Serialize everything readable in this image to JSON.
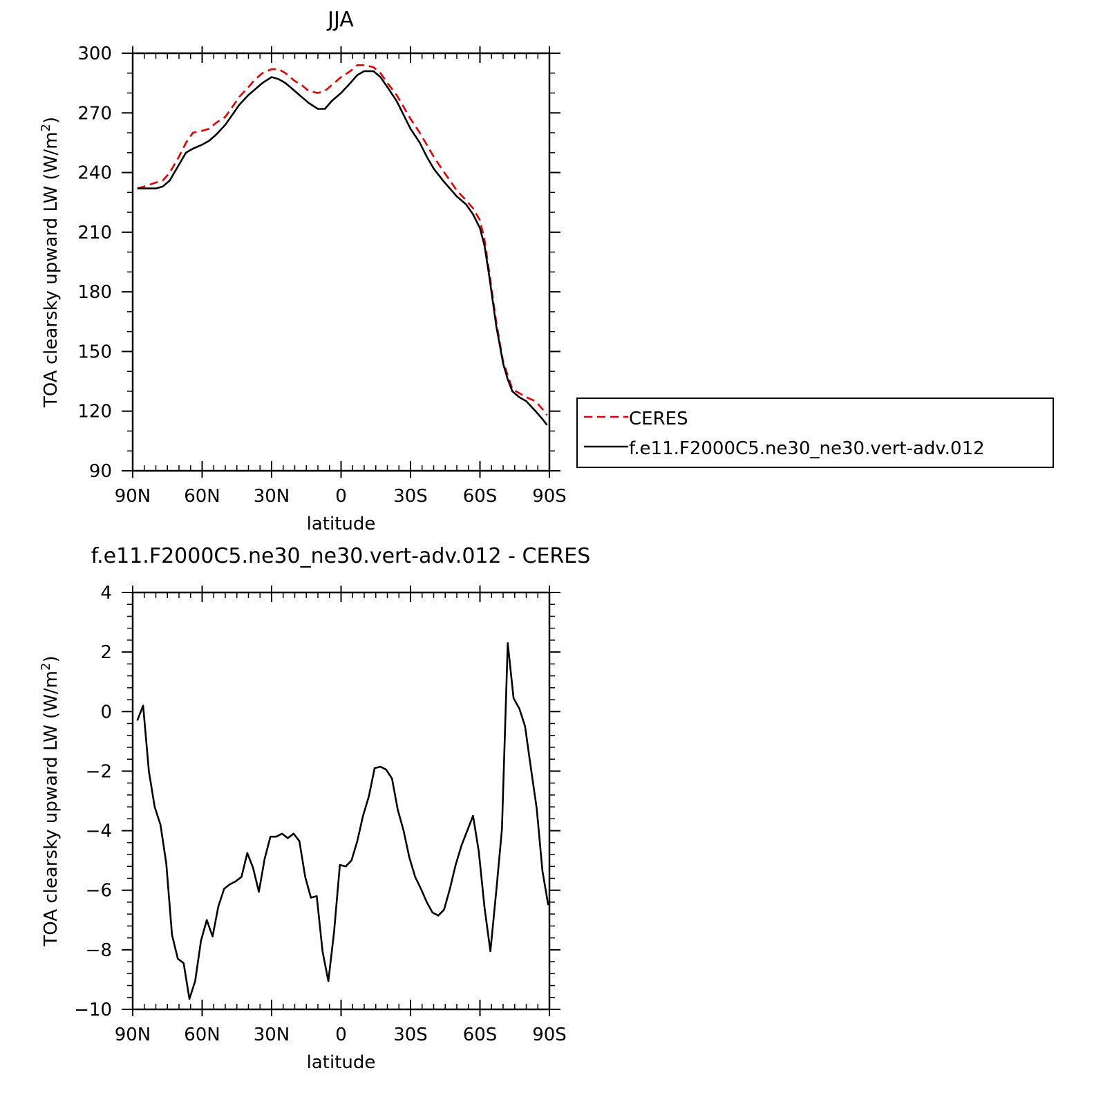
{
  "chart_data": [
    {
      "type": "line",
      "title": "JJA",
      "xlabel": "latitude",
      "ylabel": "TOA clearsky upward LW (W/m²)",
      "ylabel_parts": {
        "main": "TOA clearsky upward LW (W/m",
        "sup": "2",
        "close": ")"
      },
      "xlim": [
        90,
        -90
      ],
      "ylim": [
        90,
        300
      ],
      "xticks": [
        90,
        60,
        30,
        0,
        -30,
        -60,
        -90
      ],
      "xtick_labels": [
        "90N",
        "60N",
        "30N",
        "0",
        "30S",
        "60S",
        "90S"
      ],
      "yticks": [
        90,
        120,
        150,
        180,
        210,
        240,
        270,
        300
      ],
      "ytick_labels": [
        "90",
        "120",
        "150",
        "180",
        "210",
        "240",
        "270",
        "300"
      ],
      "legend_position": "right",
      "series": [
        {
          "name": "CERES",
          "color": "#e00000",
          "dash": true,
          "x": [
            88,
            85,
            80,
            77,
            74,
            70,
            67,
            64,
            60,
            57,
            54,
            50,
            47,
            44,
            40,
            37,
            34,
            30,
            27,
            24,
            20,
            17,
            14,
            10,
            7,
            4,
            0,
            -4,
            -7,
            -10,
            -14,
            -17,
            -20,
            -24,
            -27,
            -30,
            -34,
            -37,
            -40,
            -44,
            -47,
            -50,
            -54,
            -57,
            -60,
            -62,
            -64,
            -67,
            -70,
            -72,
            -74,
            -77,
            -80,
            -84,
            -87,
            -89
          ],
          "y": [
            232,
            233,
            235,
            236,
            240,
            248,
            255,
            260,
            261,
            262,
            265,
            268,
            273,
            278,
            283,
            287,
            290,
            292,
            292,
            290,
            286,
            284,
            281,
            280,
            281,
            284,
            288,
            291,
            294,
            294,
            293,
            290,
            285,
            279,
            273,
            267,
            260,
            254,
            248,
            241,
            236,
            231,
            226,
            222,
            216,
            206,
            190,
            165,
            145,
            138,
            131,
            129,
            127,
            125,
            121,
            118
          ]
        },
        {
          "name": "f.e11.F2000C5.ne30_ne30.vert-adv.012",
          "color": "#000000",
          "dash": false,
          "x": [
            88,
            85,
            80,
            77,
            74,
            70,
            67,
            64,
            60,
            57,
            54,
            50,
            47,
            44,
            40,
            37,
            34,
            30,
            27,
            24,
            20,
            17,
            14,
            10,
            7,
            4,
            0,
            -4,
            -7,
            -10,
            -14,
            -17,
            -20,
            -24,
            -27,
            -30,
            -34,
            -37,
            -40,
            -44,
            -47,
            -50,
            -54,
            -57,
            -60,
            -62,
            -64,
            -67,
            -70,
            -72,
            -74,
            -77,
            -80,
            -84,
            -87,
            -89
          ],
          "y": [
            232,
            232,
            232,
            233,
            236,
            244,
            250,
            252,
            254,
            256,
            259,
            264,
            269,
            274,
            279,
            282,
            285,
            288,
            287,
            285,
            281,
            278,
            275,
            272,
            272,
            276,
            280,
            285,
            289,
            291,
            291,
            288,
            283,
            276,
            269,
            262,
            255,
            248,
            242,
            236,
            232,
            228,
            224,
            219,
            212,
            203,
            188,
            163,
            144,
            136,
            130,
            127,
            125,
            120,
            116,
            113
          ]
        }
      ]
    },
    {
      "type": "line",
      "title": "f.e11.F2000C5.ne30_ne30.vert-adv.012 - CERES",
      "xlabel": "latitude",
      "ylabel": "TOA clearsky upward LW (W/m²)",
      "ylabel_parts": {
        "main": "TOA clearsky upward LW (W/m",
        "sup": "2",
        "close": ")"
      },
      "xlim": [
        90,
        -90
      ],
      "ylim": [
        -10,
        4
      ],
      "xticks": [
        90,
        60,
        30,
        0,
        -30,
        -60,
        -90
      ],
      "xtick_labels": [
        "90N",
        "60N",
        "30N",
        "0",
        "30S",
        "60S",
        "90S"
      ],
      "yticks": [
        -10,
        -8,
        -6,
        -4,
        -2,
        0,
        2,
        4
      ],
      "ytick_labels": [
        "−10",
        "−8",
        "−6",
        "−4",
        "−2",
        "0",
        "2",
        "4"
      ],
      "series": [
        {
          "color": "#000000",
          "dash": false,
          "x": [
            88,
            85.5,
            83,
            80.5,
            78,
            75.5,
            73,
            70.5,
            68,
            65.5,
            63,
            60.5,
            58,
            55.5,
            53,
            50.5,
            48,
            45.5,
            43,
            40.5,
            38,
            35.5,
            33,
            30.5,
            28,
            25.5,
            23,
            20.5,
            18,
            15.5,
            13,
            10.5,
            8,
            5.5,
            3,
            0.5,
            -2,
            -4.5,
            -7,
            -9.5,
            -12,
            -14.5,
            -17,
            -19.5,
            -22,
            -24.5,
            -27,
            -29.5,
            -32,
            -34.5,
            -37,
            -39.5,
            -42,
            -44.5,
            -47,
            -49.5,
            -52,
            -54.5,
            -57,
            -59.5,
            -62,
            -64.5,
            -67,
            -69.5,
            -72,
            -74.5,
            -77,
            -79.5,
            -82,
            -84.5,
            -87,
            -89.5
          ],
          "y": [
            -0.3,
            0.2,
            -2.0,
            -3.2,
            -3.8,
            -5.1,
            -7.5,
            -8.3,
            -8.45,
            -9.65,
            -9.05,
            -7.7,
            -7.0,
            -7.55,
            -6.55,
            -5.95,
            -5.8,
            -5.7,
            -5.55,
            -4.75,
            -5.25,
            -6.05,
            -4.95,
            -4.2,
            -4.2,
            -4.1,
            -4.25,
            -4.1,
            -4.35,
            -5.55,
            -6.25,
            -6.2,
            -8.05,
            -9.05,
            -7.4,
            -5.15,
            -5.2,
            -5.0,
            -4.35,
            -3.5,
            -2.85,
            -1.9,
            -1.85,
            -1.95,
            -2.25,
            -3.3,
            -4.0,
            -4.9,
            -5.55,
            -5.95,
            -6.4,
            -6.75,
            -6.85,
            -6.65,
            -5.95,
            -5.15,
            -4.5,
            -4.0,
            -3.5,
            -4.7,
            -6.6,
            -8.05,
            -6.05,
            -3.95,
            2.3,
            0.45,
            0.1,
            -0.5,
            -1.9,
            -3.25,
            -5.35,
            -6.5
          ]
        }
      ]
    }
  ]
}
